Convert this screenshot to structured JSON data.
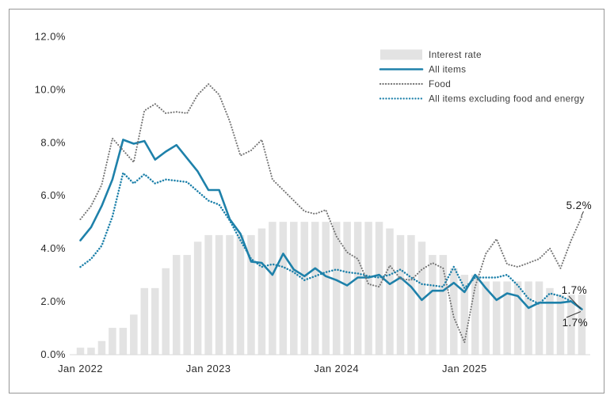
{
  "chart_data": {
    "type": "combo",
    "title": "",
    "unit": "%",
    "grid": false,
    "legend_position": "top-right",
    "months": [
      "Jan 2022",
      "Feb 2022",
      "Mar 2022",
      "Apr 2022",
      "May 2022",
      "Jun 2022",
      "Jul 2022",
      "Aug 2022",
      "Sep 2022",
      "Oct 2022",
      "Nov 2022",
      "Dec 2022",
      "Jan 2023",
      "Feb 2023",
      "Mar 2023",
      "Apr 2023",
      "May 2023",
      "Jun 2023",
      "Jul 2023",
      "Aug 2023",
      "Sep 2023",
      "Oct 2023",
      "Nov 2023",
      "Dec 2023",
      "Jan 2024",
      "Feb 2024",
      "Mar 2024",
      "Apr 2024",
      "May 2024",
      "Jun 2024",
      "Jul 2024",
      "Aug 2024",
      "Sep 2024",
      "Oct 2024",
      "Nov 2024",
      "Dec 2024",
      "Jan 2025",
      "Feb 2025",
      "Mar 2025",
      "Apr 2025",
      "May 2025",
      "Jun 2025",
      "Jul 2025",
      "Aug 2025",
      "Sep 2025",
      "Oct 2025",
      "Nov 2025",
      "Dec 2025"
    ],
    "y_axis": {
      "ylim": [
        0,
        12
      ],
      "tick_values": [
        0,
        2,
        4,
        6,
        8,
        10,
        12
      ],
      "tick_labels": [
        "0.0%",
        "2.0%",
        "4.0%",
        "6.0%",
        "8.0%",
        "10.0%",
        "12.0%"
      ]
    },
    "x_axis": {
      "tick_indices": [
        0,
        12,
        24,
        36
      ],
      "tick_labels": [
        "Jan 2022",
        "Jan 2023",
        "Jan 2024",
        "Jan 2025"
      ]
    },
    "series": [
      {
        "name": "Interest rate",
        "type": "bar",
        "style": "bar",
        "color": "#e3e3e3",
        "values": [
          0.25,
          0.25,
          0.5,
          1.0,
          1.0,
          1.5,
          2.5,
          2.5,
          3.25,
          3.75,
          3.75,
          4.25,
          4.5,
          4.5,
          4.5,
          4.5,
          4.5,
          4.75,
          5.0,
          5.0,
          5.0,
          5.0,
          5.0,
          5.0,
          5.0,
          5.0,
          5.0,
          5.0,
          5.0,
          4.75,
          4.5,
          4.5,
          4.25,
          3.75,
          3.75,
          3.25,
          3.0,
          3.0,
          2.75,
          2.75,
          2.75,
          2.75,
          2.75,
          2.75,
          2.5,
          2.25,
          2.25,
          2.25
        ]
      },
      {
        "name": "All items",
        "type": "line",
        "style": "solid",
        "color": "#1e81aa",
        "values": [
          4.3,
          4.8,
          5.6,
          6.6,
          8.1,
          7.95,
          8.05,
          7.35,
          7.65,
          7.9,
          7.4,
          6.9,
          6.2,
          6.2,
          5.1,
          4.55,
          3.5,
          3.45,
          3.0,
          3.8,
          3.2,
          2.95,
          3.25,
          2.95,
          2.8,
          2.6,
          2.9,
          2.9,
          3.0,
          2.65,
          2.9,
          2.55,
          2.05,
          2.4,
          2.4,
          2.7,
          2.35,
          3.0,
          2.5,
          2.05,
          2.3,
          2.2,
          1.75,
          1.95,
          1.95,
          1.95,
          2.0,
          1.7
        ]
      },
      {
        "name": "Food",
        "type": "line",
        "style": "dotted",
        "color": "#767676",
        "values": [
          5.1,
          5.6,
          6.4,
          8.15,
          7.7,
          7.25,
          9.2,
          9.45,
          9.1,
          9.15,
          9.1,
          9.8,
          10.2,
          9.8,
          8.8,
          7.5,
          7.7,
          8.1,
          6.6,
          6.2,
          5.8,
          5.4,
          5.3,
          5.45,
          4.45,
          3.85,
          3.6,
          2.65,
          2.55,
          3.35,
          2.85,
          2.8,
          3.2,
          3.45,
          3.25,
          1.4,
          0.45,
          2.55,
          3.8,
          4.35,
          3.4,
          3.3,
          3.45,
          3.6,
          4.0,
          3.25,
          4.3,
          5.2
        ]
      },
      {
        "name": "All items excluding food and energy",
        "type": "line",
        "style": "dotted",
        "color": "#1e81aa",
        "values": [
          3.3,
          3.6,
          4.1,
          5.2,
          6.85,
          6.45,
          6.8,
          6.45,
          6.6,
          6.55,
          6.5,
          6.15,
          5.8,
          5.65,
          5.05,
          4.3,
          3.6,
          3.3,
          3.4,
          3.3,
          3.1,
          2.8,
          2.95,
          3.1,
          3.2,
          3.1,
          3.05,
          2.95,
          2.9,
          3.0,
          3.2,
          2.9,
          2.65,
          2.6,
          2.55,
          3.3,
          2.5,
          2.9,
          2.9,
          2.9,
          3.0,
          2.6,
          2.1,
          1.9,
          2.3,
          2.2,
          2.0,
          1.7
        ]
      }
    ],
    "end_labels": [
      {
        "text": "5.2%",
        "series": "Food"
      },
      {
        "text": "1.7%",
        "series": "All items excluding food and energy"
      },
      {
        "text": "1.7%",
        "series": "All items"
      }
    ]
  }
}
